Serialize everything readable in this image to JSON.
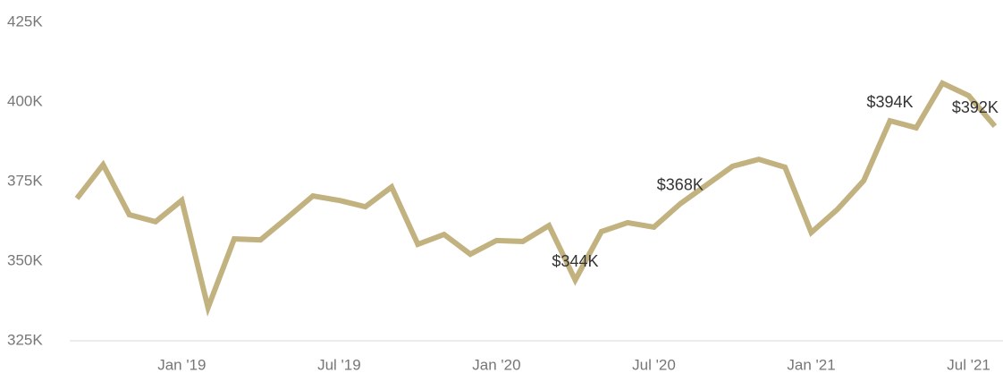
{
  "chart_data": {
    "type": "line",
    "x": [
      "2018-09",
      "2018-10",
      "2018-11",
      "2018-12",
      "2019-01",
      "2019-02",
      "2019-03",
      "2019-04",
      "2019-05",
      "2019-06",
      "2019-07",
      "2019-08",
      "2019-09",
      "2019-10",
      "2019-11",
      "2019-12",
      "2020-01",
      "2020-02",
      "2020-03",
      "2020-04",
      "2020-05",
      "2020-06",
      "2020-07",
      "2020-08",
      "2020-09",
      "2020-10",
      "2020-11",
      "2020-12",
      "2021-01",
      "2021-02",
      "2021-03",
      "2021-04",
      "2021-05",
      "2021-06",
      "2021-07",
      "2021-08"
    ],
    "values": [
      369.7,
      380.3,
      364.6,
      362.4,
      369.1,
      335.4,
      357.0,
      356.7,
      363.5,
      370.5,
      369.1,
      367.1,
      373.3,
      355.3,
      358.4,
      352.2,
      356.5,
      356.2,
      361.2,
      344.1,
      359.3,
      362.1,
      360.7,
      368.0,
      373.9,
      379.8,
      382.0,
      379.5,
      359.0,
      366.3,
      375.3,
      394.1,
      391.9,
      405.9,
      402.0,
      392.4
    ],
    "value_labels": [
      null,
      null,
      null,
      null,
      null,
      null,
      null,
      null,
      null,
      null,
      null,
      null,
      null,
      null,
      null,
      null,
      null,
      null,
      null,
      "$344K",
      null,
      null,
      null,
      "$368K",
      null,
      null,
      null,
      null,
      null,
      null,
      null,
      "$394K",
      null,
      null,
      null,
      "$392K"
    ],
    "color": "#c2b280",
    "ylim": [
      325,
      425
    ],
    "yticks": [
      {
        "value": 325,
        "label": "325K"
      },
      {
        "value": 350,
        "label": "350K"
      },
      {
        "value": 375,
        "label": "375K"
      },
      {
        "value": 400,
        "label": "400K"
      },
      {
        "value": 425,
        "label": "425K"
      }
    ],
    "xticks": [
      {
        "value": "2019-01",
        "label": "Jan '19"
      },
      {
        "value": "2019-07",
        "label": "Jul '19"
      },
      {
        "value": "2020-01",
        "label": "Jan '20"
      },
      {
        "value": "2020-07",
        "label": "Jul '20"
      },
      {
        "value": "2021-01",
        "label": "Jan '21"
      },
      {
        "value": "2021-07",
        "label": "Jul '21"
      }
    ],
    "grid": false
  }
}
